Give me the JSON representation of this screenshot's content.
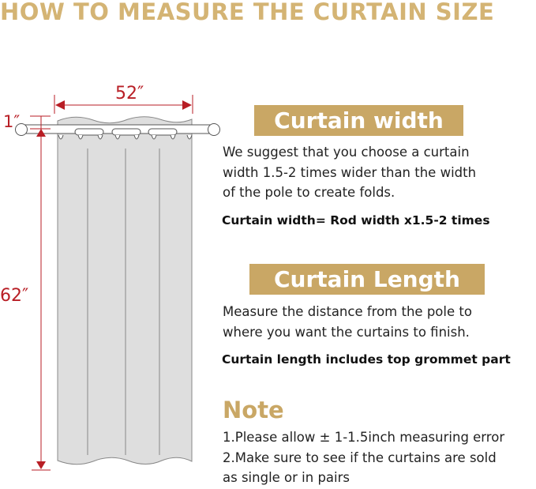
{
  "title": "HOW TO MEASURE THE CURTAIN SIZE",
  "diagram": {
    "width_label": "52″",
    "height_label": "62″",
    "grommet_label": "1″",
    "colors": {
      "dimension": "#b81e25",
      "curtain": "#dedede",
      "outline": "#888888"
    }
  },
  "width_section": {
    "heading": "Curtain width",
    "lines": [
      "We suggest that you choose a curtain",
      "width 1.5-2 times wider than the width",
      "of the pole to create folds."
    ],
    "formula": "Curtain width= Rod width x1.5-2 times"
  },
  "length_section": {
    "heading": "Curtain Length",
    "lines": [
      "Measure the distance from the pole to",
      "where you want the curtains to finish."
    ],
    "formula": "Curtain length includes top grommet part"
  },
  "note": {
    "heading": "Note",
    "lines": [
      "1.Please allow ± 1-1.5inch measuring error",
      "2.Make sure to see if the curtains are sold",
      "as single or in pairs"
    ]
  },
  "accent_color": "#c9a765"
}
